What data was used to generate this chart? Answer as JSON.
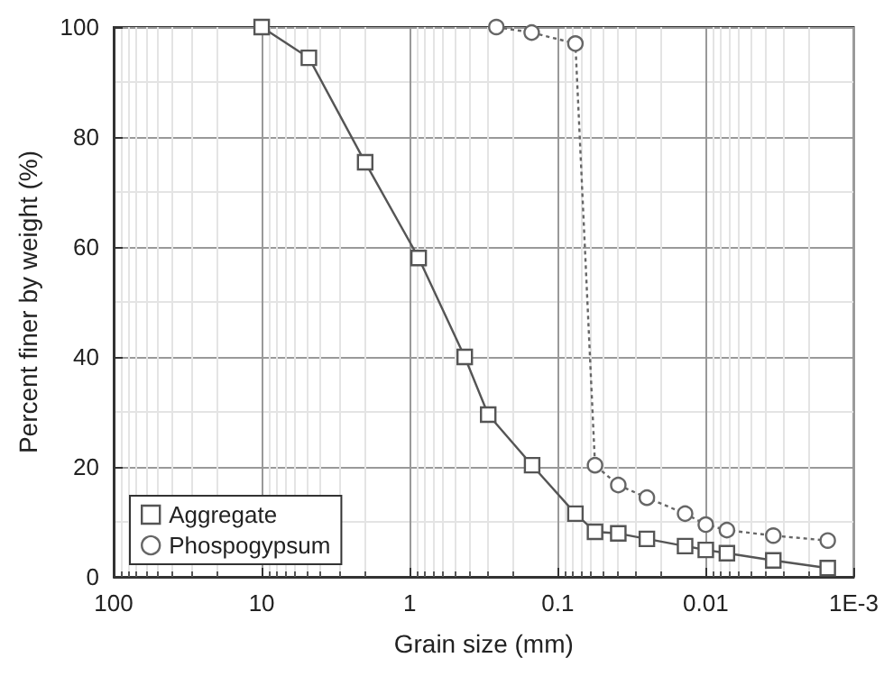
{
  "chart_data": {
    "type": "line",
    "xlabel": "Grain size (mm)",
    "ylabel": "Percent finer by weight (%)",
    "log": "x",
    "xlim": [
      100,
      0.001
    ],
    "xticks": [
      100,
      10,
      1,
      0.1,
      0.01,
      {
        "value": 0.001,
        "label": "1E-3"
      }
    ],
    "ylim": [
      0,
      100
    ],
    "yticks": [
      0,
      20,
      40,
      60,
      80,
      100
    ],
    "grid": true,
    "legend": "bottom left",
    "series": [
      {
        "name": "Aggregate",
        "color": "#555555",
        "marker": "square",
        "line_style": "solid",
        "x": [
          10,
          4.8,
          2,
          0.87,
          0.425,
          0.295,
          0.149,
          0.076,
          0.056,
          0.039,
          0.025,
          0.0138,
          0.01,
          0.0072,
          0.0035,
          0.0015
        ],
        "values": [
          100,
          94.4,
          75.4,
          58,
          40,
          29.5,
          20.3,
          11.5,
          8.2,
          7.9,
          6.9,
          5.6,
          4.9,
          4.3,
          3,
          1.6
        ]
      },
      {
        "name": "Phospogypsum",
        "color": "#666666",
        "marker": "circle",
        "line_style": "dotted",
        "x": [
          0.26,
          0.15,
          0.076,
          0.056,
          0.039,
          0.025,
          0.0138,
          0.01,
          0.0072,
          0.0035,
          0.0015
        ],
        "values": [
          100,
          99,
          97,
          20.3,
          16.7,
          14.4,
          11.5,
          9.5,
          8.5,
          7.5,
          6.6
        ]
      }
    ]
  }
}
